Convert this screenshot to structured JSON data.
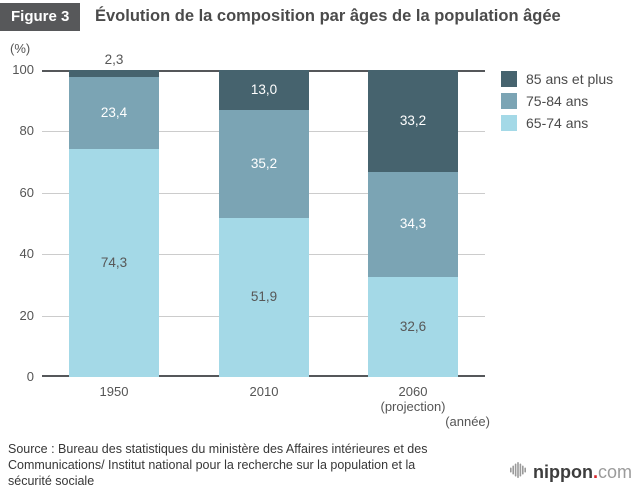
{
  "header": {
    "figure_label": "Figure 3",
    "title": "Évolution de la composition par âges de la population âgée"
  },
  "chart_data": {
    "type": "bar",
    "stacked": true,
    "title": "Évolution de la composition par âges de la population âgée",
    "ylabel": "(%)",
    "xlabel": "(année)",
    "ylim": [
      0,
      100
    ],
    "y_ticks": [
      0,
      20,
      40,
      60,
      80,
      100
    ],
    "grid": true,
    "legend_position": "right",
    "categories": [
      {
        "label": "1950",
        "sublabel": ""
      },
      {
        "label": "2010",
        "sublabel": ""
      },
      {
        "label": "2060",
        "sublabel": "(projection)"
      }
    ],
    "series": [
      {
        "name": "85 ans et plus",
        "color": "#46636e",
        "values": [
          2.3,
          13.0,
          33.2
        ],
        "labels": [
          "2,3",
          "13,0",
          "33,2"
        ],
        "label_color": "#ffffff"
      },
      {
        "name": "75-84 ans",
        "color": "#7ba4b4",
        "values": [
          23.4,
          35.2,
          34.3
        ],
        "labels": [
          "23,4",
          "35,2",
          "34,3"
        ],
        "label_color": "#ffffff"
      },
      {
        "name": "65-74 ans",
        "color": "#a4d9e7",
        "values": [
          74.3,
          51.9,
          32.6
        ],
        "labels": [
          "74,3",
          "51,9",
          "32,6"
        ],
        "label_color": "#575757"
      }
    ],
    "outside_label_color": "#575757"
  },
  "source": {
    "lines": [
      "Source : Bureau des statistiques du ministère des Affaires intérieures et des",
      "Communications/ Institut national pour la recherche sur la population et la",
      "sécurité sociale"
    ]
  },
  "branding": {
    "name": "nippon",
    "dot": ".",
    "tld": "com",
    "dot_color": "#d7262c",
    "icon_color": "#9a9a9a"
  }
}
